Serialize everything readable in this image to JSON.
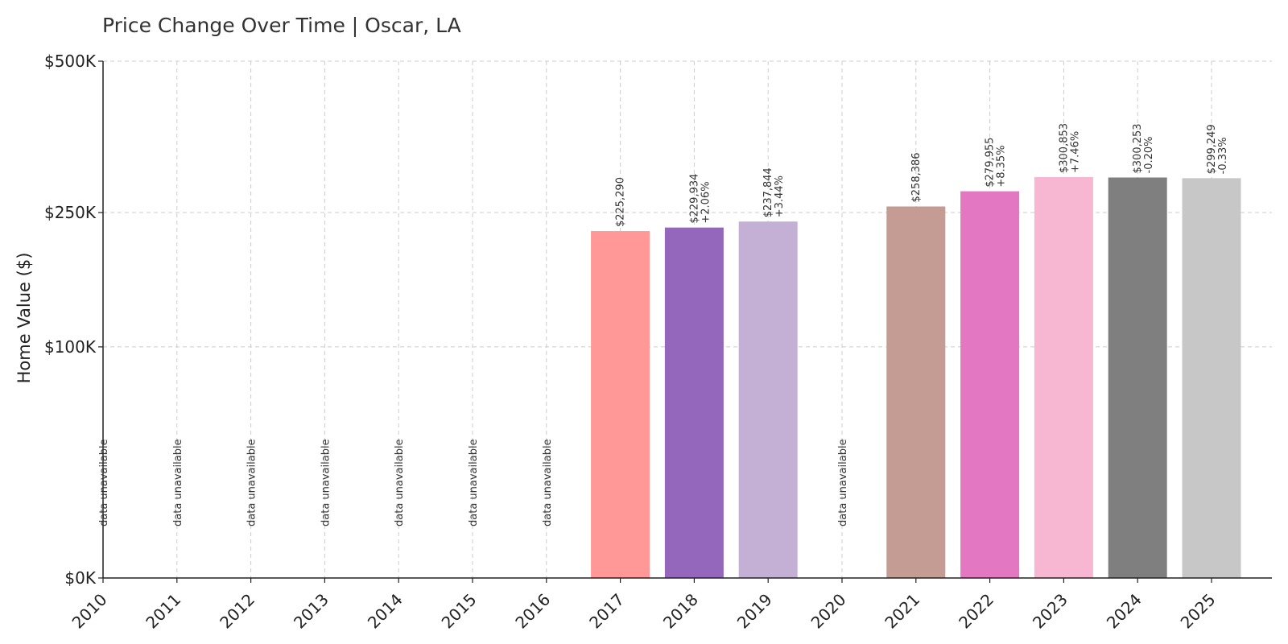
{
  "chart_data": {
    "type": "bar",
    "title": "Price Change Over Time | Oscar, LA",
    "xlabel": "",
    "ylabel": "Home Value ($)",
    "ylim": [
      0,
      500000
    ],
    "scale": "sqrt",
    "grid": true,
    "yticks": [
      {
        "value": 0,
        "label": "$0K"
      },
      {
        "value": 100000,
        "label": "$100K"
      },
      {
        "value": 250000,
        "label": "$250K"
      },
      {
        "value": 500000,
        "label": "$500K"
      }
    ],
    "categories": [
      "2010",
      "2011",
      "2012",
      "2013",
      "2014",
      "2015",
      "2016",
      "2017",
      "2018",
      "2019",
      "2020",
      "2021",
      "2022",
      "2023",
      "2024",
      "2025"
    ],
    "values": [
      null,
      null,
      null,
      null,
      null,
      null,
      null,
      225290,
      229934,
      237844,
      null,
      258386,
      279955,
      300853,
      300253,
      299249
    ],
    "value_labels": [
      "",
      "",
      "",
      "",
      "",
      "",
      "",
      "$225,290",
      "$229,934",
      "$237,844",
      "",
      "$258,386",
      "$279,955",
      "$300,853",
      "$300,253",
      "$299,249"
    ],
    "change_labels": [
      "",
      "",
      "",
      "",
      "",
      "",
      "",
      "",
      "+2.06%",
      "+3.44%",
      "",
      "",
      "+8.35%",
      "+7.46%",
      "-0.20%",
      "-0.33%"
    ],
    "unavailable_label": "data unavailable",
    "colors": [
      "#1f77b4",
      "#aec7e8",
      "#ff7f0e",
      "#ffbb78",
      "#2ca02c",
      "#98df8a",
      "#d62728",
      "#ff9896",
      "#9467bd",
      "#c5b0d5",
      "#8c564b",
      "#c49c94",
      "#e377c2",
      "#f7b6d2",
      "#7f7f7f",
      "#c7c7c7"
    ]
  }
}
